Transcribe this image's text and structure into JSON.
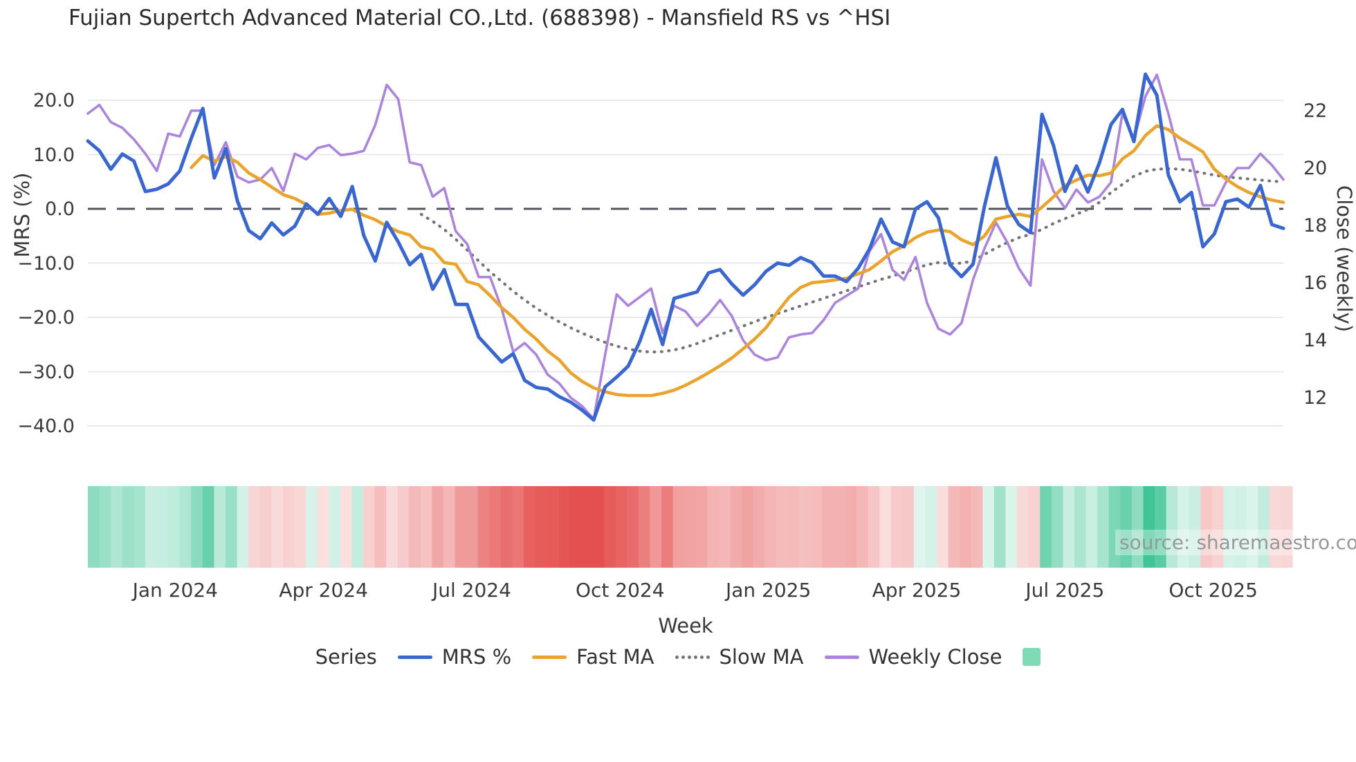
{
  "title": "Fujian Supertch Advanced Material CO.,Ltd. (688398) - Mansfield RS vs ^HSI",
  "source": "source: sharemaestro.com",
  "axes": {
    "left": {
      "label": "MRS (%)",
      "ticks": [
        {
          "label": "20.0",
          "value": 20
        },
        {
          "label": "10.0",
          "value": 10
        },
        {
          "label": "0.0",
          "value": 0
        },
        {
          "label": "−10.0",
          "value": -10
        },
        {
          "label": "−20.0",
          "value": -20
        },
        {
          "label": "−30.0",
          "value": -30
        },
        {
          "label": "−40.0",
          "value": -40
        }
      ]
    },
    "right": {
      "label": "Close (weekly)",
      "ticks": [
        {
          "label": "22",
          "value": 22
        },
        {
          "label": "20",
          "value": 20
        },
        {
          "label": "18",
          "value": 18
        },
        {
          "label": "16",
          "value": 16
        },
        {
          "label": "14",
          "value": 14
        },
        {
          "label": "12",
          "value": 12
        }
      ]
    },
    "x": {
      "label": "Week",
      "ticks": [
        {
          "label": "Jan 2024",
          "week": 7.6
        },
        {
          "label": "Apr 2024",
          "week": 20.5
        },
        {
          "label": "Jul 2024",
          "week": 33.4
        },
        {
          "label": "Oct 2024",
          "week": 46.3
        },
        {
          "label": "Jan 2025",
          "week": 59.2
        },
        {
          "label": "Apr 2025",
          "week": 72.1
        },
        {
          "label": "Jul 2025",
          "week": 85.0
        },
        {
          "label": "Oct 2025",
          "week": 97.9
        }
      ]
    }
  },
  "legend": {
    "heading": "Series",
    "items": [
      {
        "label": "MRS %",
        "swatch": "line",
        "color": "#3866d3"
      },
      {
        "label": "Fast MA",
        "swatch": "line",
        "color": "#eba42b"
      },
      {
        "label": "Slow MA",
        "swatch": "dotted",
        "color": "#72757c"
      },
      {
        "label": "Weekly Close",
        "swatch": "line",
        "color": "#ab84e0"
      },
      {
        "label": "",
        "swatch": "square",
        "color": "#7fdbb6"
      }
    ]
  },
  "colors": {
    "mrs": "#3866d3",
    "fast_ma": "#eba42b",
    "slow_ma": "#72757c",
    "weekly_close": "#ab84e0",
    "zero_line": "#53555e",
    "grid": "#e9e9f0",
    "heat_positive": "#41c596",
    "heat_negative": "#e4504f"
  },
  "chart_data": {
    "type": "line",
    "title": "Fujian Supertch Advanced Material CO.,Ltd. (688398) - Mansfield RS vs ^HSI",
    "xlabel": "Week",
    "ylabel_left": "MRS (%)",
    "ylabel_right": "Close (weekly)",
    "x_unit": "weekly, Nov 2023 - Nov 2025",
    "n_points": 105,
    "ylim_left": [
      -43,
      27
    ],
    "yticks_left": [
      20,
      10,
      0,
      -10,
      -20,
      -30,
      -40
    ],
    "yticks_right": [
      22,
      20,
      18,
      16,
      14,
      12
    ],
    "grid": true,
    "zero_reference_line": true,
    "legend_position": "bottom",
    "series": [
      {
        "name": "MRS %",
        "axis": "left",
        "style": "solid",
        "values": [
          12.5,
          10.7,
          7.3,
          10.1,
          8.8,
          3.2,
          3.6,
          4.6,
          7.0,
          13.0,
          18.5,
          5.7,
          11.1,
          1.5,
          -4.0,
          -5.5,
          -2.6,
          -4.8,
          -3.2,
          0.9,
          -1.0,
          1.9,
          -1.4,
          4.1,
          -4.9,
          -9.6,
          -2.5,
          -6.1,
          -10.3,
          -8.4,
          -14.8,
          -11.2,
          -17.6,
          -17.6,
          -23.6,
          -25.9,
          -28.2,
          -26.7,
          -31.6,
          -32.9,
          -33.2,
          -34.6,
          -35.6,
          -37.1,
          -38.9,
          -32.8,
          -31.0,
          -29.0,
          -24.5,
          -18.5,
          -25.0,
          -16.5,
          -15.9,
          -15.3,
          -11.8,
          -11.2,
          -13.8,
          -15.9,
          -14.0,
          -11.5,
          -10.0,
          -10.4,
          -9.0,
          -9.9,
          -12.4,
          -12.4,
          -13.4,
          -11.0,
          -7.4,
          -1.9,
          -6.1,
          -7.0,
          0.0,
          1.3,
          -1.7,
          -10.3,
          -12.5,
          -10.2,
          0.5,
          9.4,
          0.5,
          -2.9,
          -4.4,
          17.4,
          11.7,
          3.2,
          7.9,
          3.1,
          8.5,
          15.5,
          18.3,
          12.4,
          24.8,
          20.9,
          6.2,
          1.3,
          3.0,
          -7.0,
          -4.6,
          1.3,
          1.8,
          0.3,
          4.3,
          -2.9,
          -3.6
        ]
      },
      {
        "name": "Fast MA",
        "axis": "left",
        "style": "solid",
        "values": [
          null,
          null,
          null,
          null,
          null,
          null,
          null,
          null,
          null,
          7.6,
          9.8,
          8.8,
          9.6,
          8.6,
          6.6,
          5.4,
          4.0,
          2.6,
          1.9,
          0.8,
          -1.0,
          -0.8,
          -0.3,
          -0.1,
          -1.2,
          -2.0,
          -3.2,
          -4.2,
          -4.8,
          -7.0,
          -7.5,
          -9.9,
          -10.2,
          -13.4,
          -14.0,
          -16.0,
          -18.2,
          -20.0,
          -22.2,
          -24.0,
          -26.2,
          -27.8,
          -30.2,
          -31.8,
          -33.0,
          -33.7,
          -34.2,
          -34.4,
          -34.4,
          -34.4,
          -34.0,
          -33.4,
          -32.5,
          -31.4,
          -30.2,
          -28.9,
          -27.5,
          -25.8,
          -24.0,
          -21.9,
          -19.0,
          -16.3,
          -14.5,
          -13.6,
          -13.4,
          -13.1,
          -12.8,
          -12.0,
          -11.2,
          -9.6,
          -7.9,
          -6.8,
          -5.3,
          -4.3,
          -3.9,
          -4.2,
          -5.7,
          -6.6,
          -5.0,
          -1.9,
          -1.4,
          -1.0,
          -1.4,
          0.3,
          2.2,
          4.3,
          5.3,
          6.2,
          6.1,
          6.6,
          9.2,
          10.7,
          13.5,
          15.3,
          14.6,
          13.0,
          11.8,
          10.5,
          7.3,
          5.5,
          4.1,
          3.0,
          2.2,
          1.6,
          1.2
        ]
      },
      {
        "name": "Slow MA",
        "axis": "left",
        "style": "dotted",
        "values": [
          null,
          null,
          null,
          null,
          null,
          null,
          null,
          null,
          null,
          null,
          null,
          null,
          null,
          null,
          null,
          null,
          null,
          null,
          null,
          null,
          null,
          null,
          null,
          null,
          null,
          null,
          null,
          null,
          null,
          -1.0,
          -2.3,
          -3.8,
          -5.6,
          -7.6,
          -9.6,
          -11.6,
          -13.4,
          -15.2,
          -16.8,
          -18.3,
          -19.6,
          -20.8,
          -21.9,
          -22.9,
          -23.8,
          -24.6,
          -25.3,
          -25.8,
          -26.2,
          -26.4,
          -26.3,
          -26.0,
          -25.5,
          -24.8,
          -24.0,
          -23.2,
          -22.4,
          -21.6,
          -20.8,
          -20.0,
          -19.3,
          -18.6,
          -17.9,
          -17.2,
          -16.5,
          -15.8,
          -15.1,
          -14.4,
          -13.7,
          -13.0,
          -12.4,
          -11.7,
          -11.0,
          -10.3,
          -9.9,
          -10.1,
          -10.0,
          -9.6,
          -8.4,
          -7.2,
          -6.2,
          -5.3,
          -4.7,
          -3.8,
          -2.7,
          -1.8,
          -1.0,
          -0.1,
          1.2,
          3.0,
          4.5,
          6.0,
          6.9,
          7.3,
          7.4,
          7.3,
          7.0,
          6.6,
          6.2,
          5.9,
          5.7,
          5.5,
          5.3,
          5.1,
          5.0
        ]
      },
      {
        "name": "Weekly Close",
        "axis": "right",
        "style": "solid",
        "values": [
          21.9,
          22.2,
          21.6,
          21.4,
          21.0,
          20.5,
          19.9,
          21.2,
          21.1,
          22.0,
          22.0,
          20.1,
          20.9,
          19.7,
          19.5,
          19.6,
          20.0,
          19.2,
          20.5,
          20.3,
          20.7,
          20.8,
          20.45,
          20.5,
          20.6,
          21.5,
          22.9,
          22.4,
          20.2,
          20.1,
          19.0,
          19.3,
          17.8,
          17.35,
          16.2,
          16.2,
          15.1,
          13.6,
          13.9,
          13.5,
          12.8,
          12.5,
          12.0,
          11.7,
          11.25,
          13.5,
          15.6,
          15.2,
          15.5,
          15.8,
          14.25,
          15.2,
          15.0,
          14.5,
          14.9,
          15.4,
          14.85,
          14.0,
          13.5,
          13.3,
          13.4,
          14.1,
          14.2,
          14.25,
          14.7,
          15.3,
          15.55,
          15.8,
          17.1,
          17.7,
          16.45,
          16.1,
          16.9,
          15.3,
          14.4,
          14.2,
          14.6,
          16.1,
          17.2,
          18.1,
          17.4,
          16.5,
          15.9,
          20.3,
          19.2,
          18.6,
          19.25,
          18.8,
          19.0,
          19.5,
          21.9,
          21.0,
          22.5,
          23.25,
          21.9,
          20.3,
          20.3,
          18.7,
          18.7,
          19.5,
          20.0,
          20.0,
          20.5,
          20.1,
          19.6
        ]
      }
    ],
    "heatmap_strip": {
      "description": "weekly relative-strength heat band below plot, green=positive MRS, red=negative MRS",
      "source_series": "MRS %"
    }
  }
}
